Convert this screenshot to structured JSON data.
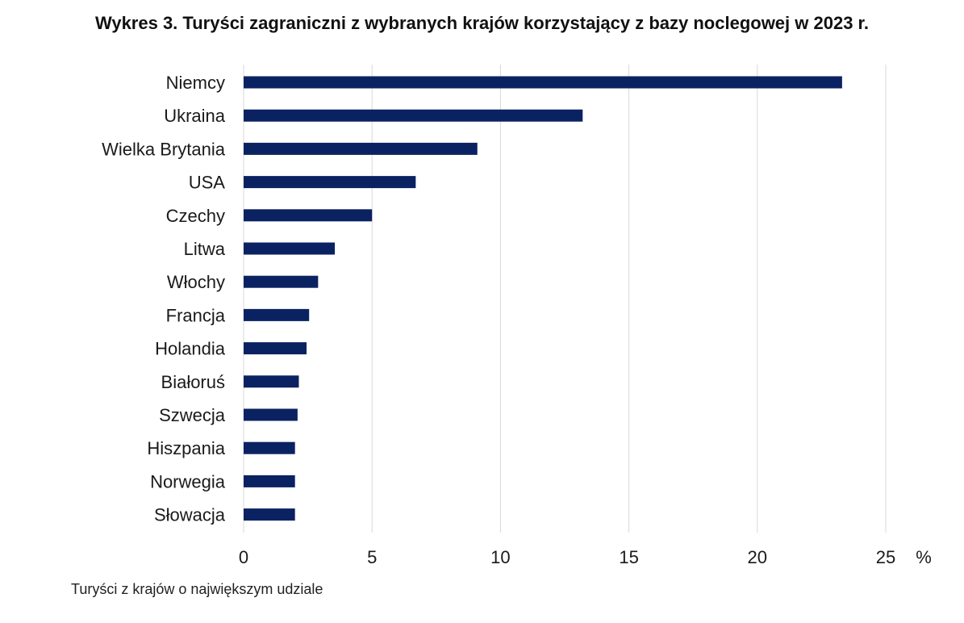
{
  "chart_data": {
    "type": "bar",
    "orientation": "horizontal",
    "title": "Wykres 3. Turyści zagraniczni z wybranych krajów korzystający z bazy noclegowej w 2023 r.",
    "note": "Turyści z krajów o największym udziale",
    "unit": "%",
    "categories": [
      "Niemcy",
      "Ukraina",
      "Wielka Brytania",
      "USA",
      "Czechy",
      "Litwa",
      "Włochy",
      "Francja",
      "Holandia",
      "Białoruś",
      "Szwecja",
      "Hiszpania",
      "Norwegia",
      "Słowacja"
    ],
    "values": [
      23.3,
      13.2,
      9.1,
      6.7,
      5.0,
      3.55,
      2.9,
      2.55,
      2.45,
      2.15,
      2.1,
      2.0,
      2.0,
      2.0
    ],
    "xlim": [
      0,
      25
    ],
    "xticks": [
      0,
      5,
      10,
      15,
      20,
      25
    ],
    "grid": true,
    "bar_color": "#0b2262",
    "grid_color": "#d9d9d9"
  }
}
